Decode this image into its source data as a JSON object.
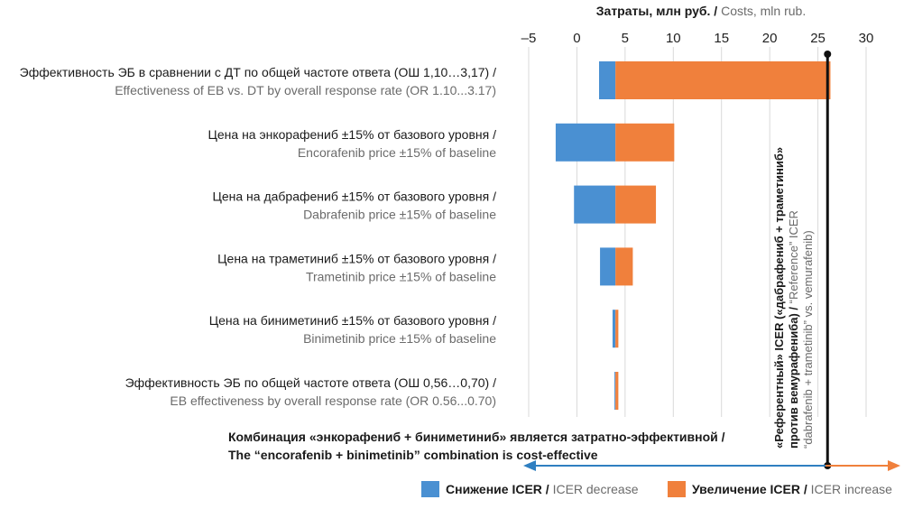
{
  "chart_data": {
    "type": "bar",
    "subtype": "tornado",
    "axis_title_ru": "Затраты, млн руб.",
    "axis_title_en": "Costs, mln rub.",
    "axis_title_sep": " / ",
    "xlim": [
      -5,
      30
    ],
    "ticks": [
      -5,
      0,
      5,
      10,
      15,
      20,
      25,
      30
    ],
    "tick_labels": [
      "–5",
      "0",
      "5",
      "10",
      "15",
      "20",
      "25",
      "30"
    ],
    "baseline": 4,
    "reference_value": 26,
    "grid": true,
    "categories": [
      {
        "ru": "Эффективность ЭБ в сравнении с ДТ по общей частоте ответа (ОШ 1,10…3,17) /",
        "en": "Effectiveness of EB vs. DT by overall response rate (OR 1.10...3.17)",
        "low": 2.3,
        "high": 26.3
      },
      {
        "ru": "Цена на энкорафениб ±15% от базового уровня /",
        "en": "Encorafenib price ±15% of baseline",
        "low": -2.2,
        "high": 10.1
      },
      {
        "ru": "Цена на дабрафениб ±15% от базового уровня /",
        "en": "Dabrafenib price ±15% of baseline",
        "low": -0.3,
        "high": 8.2
      },
      {
        "ru": "Цена на траметиниб ±15% от базового уровня /",
        "en": "Trametinib price ±15% of baseline",
        "low": 2.4,
        "high": 5.8
      },
      {
        "ru": "Цена на биниметиниб ±15% от базового уровня /",
        "en": "Binimetinib price ±15% of baseline",
        "low": 3.7,
        "high": 4.3
      },
      {
        "ru": "Эффективность ЭБ по общей частоте ответа (ОШ 0,56…0,70) /",
        "en": "EB effectiveness by overall response rate (OR 0.56...0.70)",
        "low": 3.9,
        "high": 4.3
      }
    ],
    "series": [
      {
        "name_ru": "Снижение ICER",
        "name_en": "ICER decrease",
        "color": "#4a90d2"
      },
      {
        "name_ru": "Увеличение ICER",
        "name_en": "ICER increase",
        "color": "#f0803c"
      }
    ],
    "reference_label_ru": "«Референтный» ICER («дабрафениб + траметиниб» против вемурафениба) /",
    "reference_label_en": "“Reference” ICER (“dabrafenib + trametinib” vs. vemurafenib)",
    "annotation_ru": "Комбинация «энкорафениб + биниметиниб» является затратно-эффективной /",
    "annotation_en": "The “encorafenib + binimetinib” combination is cost-effective",
    "arrow_left_color": "#2f7fc1",
    "arrow_right_color": "#f0803c",
    "gridline_color": "#d9d9d9",
    "reference_line_color": "#111111"
  }
}
